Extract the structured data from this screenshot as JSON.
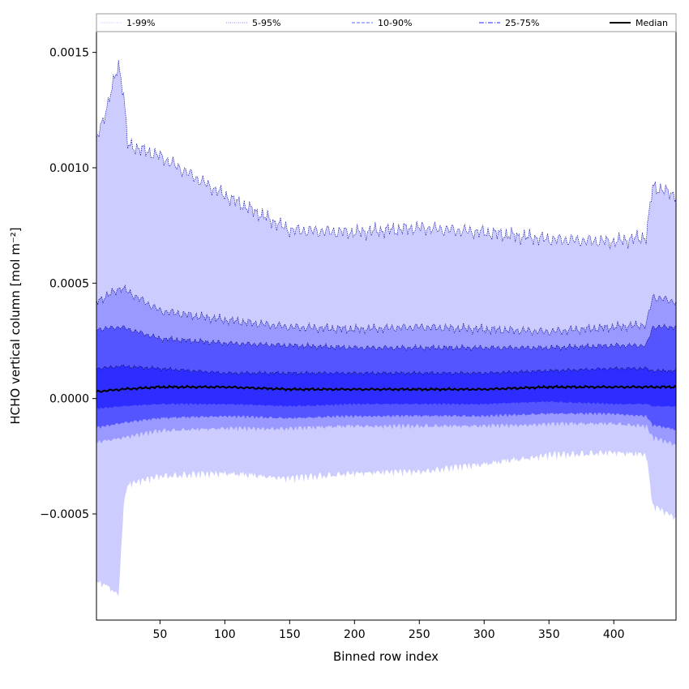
{
  "chart_data": {
    "type": "area",
    "title": "",
    "xlabel": "Binned row index",
    "ylabel": "HCHO vertical column [mol m⁻²]",
    "xlim": [
      1,
      448
    ],
    "ylim": [
      -0.00096,
      0.00159
    ],
    "x_ticks": [
      50,
      100,
      150,
      200,
      250,
      300,
      350,
      400
    ],
    "x_tick_labels": [
      "50",
      "100",
      "150",
      "200",
      "250",
      "300",
      "350",
      "400"
    ],
    "y_ticks": [
      -0.0005,
      0.0,
      0.0005,
      0.001,
      0.0015
    ],
    "y_tick_labels": [
      "−0.0005",
      "0.0000",
      "0.0005",
      "0.0010",
      "0.0015"
    ],
    "grid": false,
    "legend_position": "top",
    "legend": [
      {
        "label": "1-99%",
        "style": "dotted",
        "color": "#cfcfff"
      },
      {
        "label": "5-95%",
        "style": "dotted",
        "color": "#9999ff"
      },
      {
        "label": "10-90%",
        "style": "dashed",
        "color": "#8080ff"
      },
      {
        "label": "25-75%",
        "style": "dashdot",
        "color": "#4d4dff"
      },
      {
        "label": "Median",
        "style": "solid",
        "color": "#000000"
      }
    ],
    "band_colors": [
      "#ccccff",
      "#9999ff",
      "#5555ff",
      "#2d2dff"
    ],
    "median_color": "#000000",
    "series": [
      {
        "name": "Median",
        "x": [
          1,
          20,
          50,
          100,
          150,
          200,
          250,
          300,
          350,
          400,
          448
        ],
        "values": [
          3e-05,
          4e-05,
          5e-05,
          5e-05,
          4e-05,
          4e-05,
          4e-05,
          4e-05,
          5e-05,
          5e-05,
          5e-05
        ]
      },
      {
        "name": "25-75%",
        "x": [
          1,
          20,
          50,
          100,
          150,
          200,
          250,
          300,
          350,
          400,
          425,
          430,
          448
        ],
        "lower": [
          -4e-05,
          -3e-05,
          -2e-05,
          -2e-05,
          -3e-05,
          -2e-05,
          -2e-05,
          -2e-05,
          -1e-05,
          -2e-05,
          -2e-05,
          -3e-05,
          -3e-05
        ],
        "upper": [
          0.00013,
          0.00014,
          0.00013,
          0.00011,
          0.00011,
          0.00011,
          0.00011,
          0.00011,
          0.00012,
          0.00013,
          0.00013,
          0.00012,
          0.00012
        ]
      },
      {
        "name": "10-90%",
        "x": [
          1,
          20,
          50,
          100,
          150,
          200,
          250,
          300,
          350,
          400,
          425,
          430,
          448
        ],
        "lower": [
          -0.00012,
          -0.0001,
          -8e-05,
          -7e-05,
          -8e-05,
          -7e-05,
          -7e-05,
          -7e-05,
          -6e-05,
          -6e-05,
          -7e-05,
          -0.00011,
          -0.00013
        ],
        "upper": [
          0.0003,
          0.00031,
          0.00026,
          0.00024,
          0.00023,
          0.00022,
          0.00022,
          0.00022,
          0.00022,
          0.00023,
          0.00023,
          0.00031,
          0.00031
        ]
      },
      {
        "name": "5-95%",
        "x": [
          1,
          20,
          50,
          100,
          150,
          200,
          250,
          300,
          350,
          400,
          425,
          430,
          448
        ],
        "lower": [
          -0.00018,
          -0.00016,
          -0.00013,
          -0.00012,
          -0.00012,
          -0.00011,
          -0.00011,
          -0.00011,
          -0.0001,
          -0.0001,
          -0.00011,
          -0.00016,
          -0.00019
        ],
        "upper": [
          0.00042,
          0.00048,
          0.00038,
          0.00034,
          0.00031,
          0.0003,
          0.00031,
          0.0003,
          0.00029,
          0.00031,
          0.00032,
          0.00044,
          0.00042
        ]
      },
      {
        "name": "1-99%",
        "x": [
          1,
          10,
          18,
          22,
          25,
          50,
          100,
          150,
          200,
          250,
          300,
          350,
          400,
          425,
          430,
          448
        ],
        "lower": [
          -0.00078,
          -0.0008,
          -0.00084,
          -0.00045,
          -0.00036,
          -0.00032,
          -0.00031,
          -0.00033,
          -0.00031,
          -0.0003,
          -0.00027,
          -0.00023,
          -0.00022,
          -0.00023,
          -0.00045,
          -0.0005
        ],
        "upper": [
          0.00112,
          0.00128,
          0.00145,
          0.00132,
          0.0011,
          0.00105,
          0.00088,
          0.00073,
          0.00072,
          0.00074,
          0.00072,
          0.00069,
          0.00068,
          0.0007,
          0.00092,
          0.00088
        ]
      }
    ]
  }
}
